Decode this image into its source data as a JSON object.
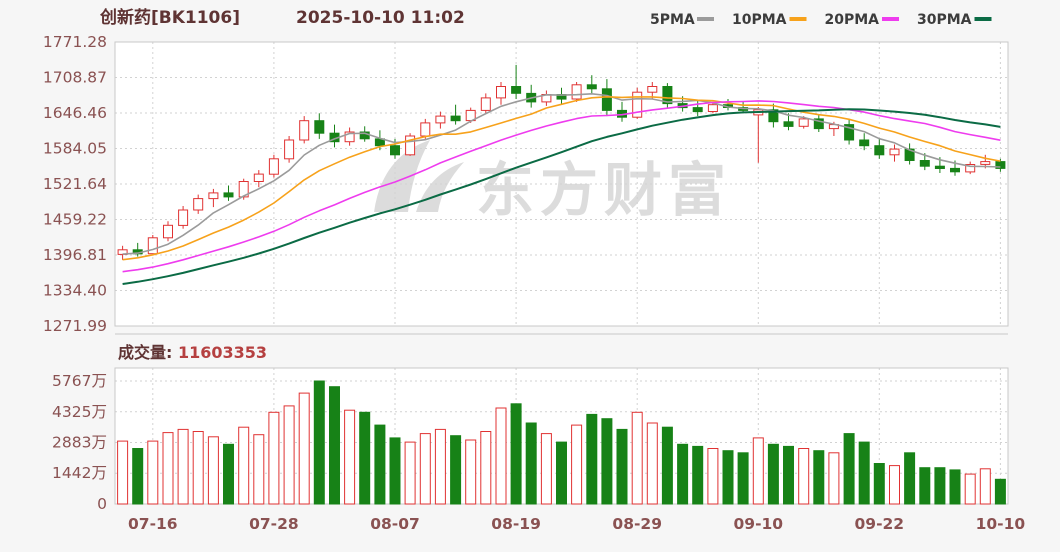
{
  "header": {
    "title": "创新药[BK1106]",
    "datetime": "2025-10-10 11:02",
    "legend": [
      {
        "label": "5PMA",
        "period": 5,
        "color": "#9b9b9b"
      },
      {
        "label": "10PMA",
        "period": 10,
        "color": "#f7a21b"
      },
      {
        "label": "20PMA",
        "period": 20,
        "color": "#ee3cee"
      },
      {
        "label": "30PMA",
        "period": 30,
        "color": "#0b6b45"
      }
    ]
  },
  "volume_header": {
    "label": "成交量:",
    "value": "11603353"
  },
  "watermark": {
    "text": "东方财富"
  },
  "colors": {
    "up": "#e03232",
    "down": "#178217",
    "title_text": "#5f3434",
    "axis_text": "#8a5252",
    "volume_value_text": "#b54040",
    "grid": "#d2d2d2",
    "frame": "#c8c8c8",
    "watermark": "#dcdcdc",
    "plot_bg": "#ffffff"
  },
  "chart_data": {
    "type": "candlestick+volume",
    "title": "创新药[BK1106] 2025-10-10 11:02",
    "legend_position": "top-right",
    "grid": true,
    "y_axis_price": [
      "1771.28",
      "1708.87",
      "1646.46",
      "1584.05",
      "1521.64",
      "1459.22",
      "1396.81",
      "1334.40",
      "1271.99"
    ],
    "y_axis_volume": [
      "5767万",
      "4325万",
      "2883万",
      "1442万",
      "0"
    ],
    "volume_unit": "万",
    "x_ticks": [
      {
        "label": "07-16",
        "index": 2
      },
      {
        "label": "07-28",
        "index": 10
      },
      {
        "label": "08-07",
        "index": 18
      },
      {
        "label": "08-19",
        "index": 26
      },
      {
        "label": "08-29",
        "index": 34
      },
      {
        "label": "09-10",
        "index": 42
      },
      {
        "label": "09-22",
        "index": 50
      },
      {
        "label": "10-10",
        "index": 58
      }
    ],
    "pre_window_closes": [
      1282,
      1288,
      1295,
      1300,
      1296,
      1304,
      1310,
      1318,
      1312,
      1320,
      1328,
      1335,
      1330,
      1338,
      1345,
      1352,
      1348,
      1356,
      1362,
      1370,
      1365,
      1374,
      1382,
      1388,
      1384,
      1390,
      1396,
      1402,
      1398
    ],
    "candle_columns": [
      "date",
      "open",
      "high",
      "low",
      "close",
      "volume_wan"
    ],
    "candles": [
      [
        "07-14",
        1398,
        1413,
        1388,
        1406,
        2950
      ],
      [
        "07-15",
        1406,
        1418,
        1394,
        1399,
        2600
      ],
      [
        "07-16",
        1399,
        1432,
        1396,
        1427,
        2950
      ],
      [
        "07-17",
        1427,
        1456,
        1421,
        1449,
        3350
      ],
      [
        "07-18",
        1449,
        1483,
        1443,
        1476,
        3500
      ],
      [
        "07-21",
        1476,
        1503,
        1469,
        1496,
        3400
      ],
      [
        "07-22",
        1496,
        1513,
        1481,
        1506,
        3150
      ],
      [
        "07-23",
        1506,
        1519,
        1492,
        1499,
        2800
      ],
      [
        "07-24",
        1499,
        1531,
        1494,
        1526,
        3600
      ],
      [
        "07-25",
        1526,
        1546,
        1516,
        1539,
        3250
      ],
      [
        "07-28",
        1539,
        1573,
        1533,
        1566,
        4300
      ],
      [
        "07-29",
        1566,
        1606,
        1559,
        1599,
        4600
      ],
      [
        "07-30",
        1599,
        1641,
        1593,
        1633,
        5200
      ],
      [
        "07-31",
        1633,
        1646,
        1601,
        1611,
        5767
      ],
      [
        "08-01",
        1611,
        1626,
        1586,
        1596,
        5500
      ],
      [
        "08-04",
        1596,
        1621,
        1589,
        1613,
        4400
      ],
      [
        "08-05",
        1613,
        1623,
        1596,
        1601,
        4300
      ],
      [
        "08-06",
        1601,
        1616,
        1581,
        1589,
        3700
      ],
      [
        "08-07",
        1589,
        1601,
        1566,
        1573,
        3100
      ],
      [
        "08-08",
        1573,
        1611,
        1571,
        1606,
        2900
      ],
      [
        "08-11",
        1606,
        1636,
        1601,
        1629,
        3300
      ],
      [
        "08-12",
        1629,
        1649,
        1619,
        1641,
        3500
      ],
      [
        "08-13",
        1641,
        1661,
        1626,
        1633,
        3200
      ],
      [
        "08-14",
        1633,
        1656,
        1629,
        1651,
        3000
      ],
      [
        "08-15",
        1651,
        1681,
        1646,
        1673,
        3400
      ],
      [
        "08-18",
        1673,
        1701,
        1661,
        1693,
        4500
      ],
      [
        "08-19",
        1693,
        1731,
        1671,
        1681,
        4700
      ],
      [
        "08-20",
        1681,
        1696,
        1656,
        1666,
        3800
      ],
      [
        "08-21",
        1666,
        1686,
        1659,
        1679,
        3300
      ],
      [
        "08-22",
        1679,
        1691,
        1661,
        1671,
        2900
      ],
      [
        "08-25",
        1671,
        1701,
        1666,
        1696,
        3700
      ],
      [
        "08-26",
        1696,
        1713,
        1681,
        1689,
        4200
      ],
      [
        "08-27",
        1689,
        1706,
        1641,
        1651,
        4000
      ],
      [
        "08-28",
        1651,
        1666,
        1631,
        1639,
        3500
      ],
      [
        "08-29",
        1639,
        1691,
        1636,
        1683,
        4300
      ],
      [
        "09-01",
        1683,
        1701,
        1671,
        1693,
        3800
      ],
      [
        "09-02",
        1693,
        1699,
        1656,
        1663,
        3600
      ],
      [
        "09-03",
        1663,
        1676,
        1649,
        1656,
        2800
      ],
      [
        "09-04",
        1656,
        1669,
        1641,
        1649,
        2700
      ],
      [
        "09-05",
        1649,
        1666,
        1646,
        1661,
        2600
      ],
      [
        "09-08",
        1661,
        1671,
        1651,
        1656,
        2500
      ],
      [
        "09-09",
        1656,
        1666,
        1646,
        1651,
        2400
      ],
      [
        "09-10",
        1643,
        1657,
        1559,
        1652,
        3100
      ],
      [
        "09-11",
        1652,
        1663,
        1621,
        1631,
        2800
      ],
      [
        "09-12",
        1631,
        1646,
        1616,
        1623,
        2700
      ],
      [
        "09-15",
        1623,
        1641,
        1619,
        1636,
        2600
      ],
      [
        "09-16",
        1636,
        1643,
        1613,
        1619,
        2500
      ],
      [
        "09-17",
        1619,
        1631,
        1606,
        1626,
        2400
      ],
      [
        "09-18",
        1626,
        1636,
        1591,
        1599,
        3300
      ],
      [
        "09-19",
        1599,
        1611,
        1581,
        1589,
        2900
      ],
      [
        "09-22",
        1589,
        1601,
        1566,
        1573,
        1900
      ],
      [
        "09-23",
        1573,
        1591,
        1561,
        1583,
        1800
      ],
      [
        "09-24",
        1583,
        1593,
        1556,
        1563,
        2400
      ],
      [
        "09-25",
        1563,
        1576,
        1546,
        1553,
        1700
      ],
      [
        "09-26",
        1553,
        1569,
        1541,
        1549,
        1700
      ],
      [
        "09-29",
        1549,
        1563,
        1536,
        1543,
        1600
      ],
      [
        "09-30",
        1543,
        1561,
        1539,
        1556,
        1400
      ],
      [
        "10-09",
        1556,
        1573,
        1549,
        1561,
        1650
      ],
      [
        "10-10",
        1561,
        1566,
        1543,
        1549,
        1160
      ]
    ]
  }
}
